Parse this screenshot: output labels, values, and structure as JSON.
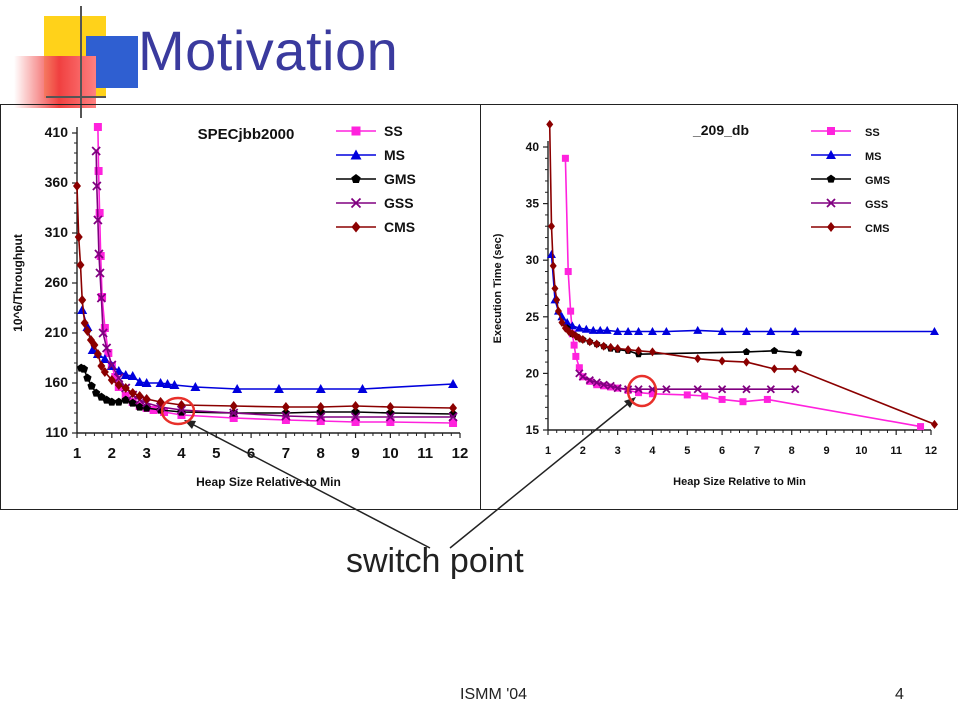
{
  "slide": {
    "title": "Motivation",
    "callout": "switch point",
    "footer_left": "ISMM '04",
    "page_number": "4"
  },
  "colors": {
    "title": "#3a3a9e",
    "SS": "#ff22dd",
    "MS": "#0000dd",
    "GMS": "#000000",
    "GSS": "#800080",
    "CMS": "#8b0000",
    "circle": "#e8302a"
  },
  "chart_data": [
    {
      "type": "line",
      "title": "SPECjbb2000",
      "xlabel": "Heap Size Relative to Min",
      "ylabel": "10^6/Throughput",
      "xlim": [
        1,
        12
      ],
      "ylim": [
        110,
        410
      ],
      "xticks": [
        1,
        2,
        3,
        4,
        5,
        6,
        7,
        8,
        9,
        10,
        11,
        12
      ],
      "yticks": [
        110,
        160,
        210,
        260,
        310,
        360,
        410
      ],
      "legend": "top-right",
      "series": [
        {
          "name": "SS",
          "marker": "square",
          "x": [
            1.6,
            1.62,
            1.65,
            1.68,
            1.72,
            1.8,
            1.9,
            2.0,
            2.1,
            2.2,
            2.4,
            2.6,
            2.8,
            3.0,
            3.2,
            3.5,
            4.0,
            5.5,
            7.0,
            8.0,
            9.0,
            10.0,
            11.8
          ],
          "y": [
            416,
            372,
            330,
            287,
            246,
            215,
            190,
            177,
            166,
            156,
            147,
            141,
            137,
            135,
            133,
            131,
            128,
            125,
            123,
            122,
            121,
            121,
            120
          ]
        },
        {
          "name": "MS",
          "marker": "triangle",
          "x": [
            1.15,
            1.3,
            1.45,
            1.6,
            1.8,
            2.0,
            2.2,
            2.4,
            2.6,
            2.8,
            3.0,
            3.4,
            3.6,
            3.8,
            4.4,
            5.6,
            6.8,
            8.0,
            9.2,
            11.8
          ],
          "y": [
            233,
            216,
            193,
            189,
            184,
            177,
            172,
            168,
            167,
            161,
            160,
            160,
            159,
            158,
            156,
            154,
            154,
            154,
            154,
            159
          ]
        },
        {
          "name": "GMS",
          "marker": "pentagon",
          "x": [
            1.12,
            1.2,
            1.3,
            1.42,
            1.55,
            1.7,
            1.85,
            2.0,
            2.2,
            2.4,
            2.6,
            2.8,
            3.0,
            3.4,
            4.0,
            5.5,
            7.0,
            8.0,
            9.0,
            10.0,
            11.8
          ],
          "y": [
            175,
            174,
            165,
            157,
            150,
            146,
            143,
            141,
            141,
            143,
            140,
            136,
            135,
            133,
            131,
            130,
            130,
            131,
            131,
            130,
            129
          ]
        },
        {
          "name": "GSS",
          "marker": "x",
          "x": [
            1.55,
            1.57,
            1.6,
            1.63,
            1.66,
            1.7,
            1.75,
            1.85,
            2.0,
            2.2,
            2.4,
            2.6,
            2.8,
            3.0,
            3.4,
            4.0,
            5.5,
            7.0,
            8.0,
            9.0,
            10.0,
            11.8
          ],
          "y": [
            392,
            357,
            323,
            289,
            270,
            245,
            210,
            195,
            178,
            165,
            155,
            148,
            143,
            140,
            136,
            133,
            130,
            127,
            126,
            126,
            126,
            126
          ]
        },
        {
          "name": "CMS",
          "marker": "diamond",
          "x": [
            1.0,
            1.05,
            1.1,
            1.15,
            1.22,
            1.3,
            1.4,
            1.5,
            1.6,
            1.7,
            1.8,
            2.0,
            2.2,
            2.4,
            2.6,
            2.8,
            3.0,
            3.4,
            4.0,
            5.5,
            7.0,
            8.0,
            9.0,
            10.0,
            11.8
          ],
          "y": [
            357,
            306,
            278,
            243,
            220,
            212,
            203,
            198,
            189,
            177,
            171,
            163,
            158,
            155,
            150,
            147,
            144,
            141,
            138,
            137,
            136,
            136,
            137,
            136,
            135
          ]
        }
      ]
    },
    {
      "type": "line",
      "title": "_209_db",
      "xlabel": "Heap Size Relative to Min",
      "ylabel": "Execution Time (sec)",
      "xlim": [
        1,
        12
      ],
      "ylim": [
        15,
        40
      ],
      "xticks": [
        1,
        2,
        3,
        4,
        5,
        6,
        7,
        8,
        9,
        10,
        11,
        12
      ],
      "yticks": [
        15,
        20,
        25,
        30,
        35,
        40
      ],
      "legend": "top-right",
      "series": [
        {
          "name": "SS",
          "marker": "square",
          "x": [
            1.5,
            1.58,
            1.65,
            1.7,
            1.75,
            1.8,
            1.9,
            2.0,
            2.2,
            2.4,
            2.6,
            2.8,
            3.0,
            3.3,
            3.6,
            4.0,
            5.0,
            5.5,
            6.0,
            6.6,
            7.3,
            11.7
          ],
          "y": [
            39,
            29,
            25.5,
            23.5,
            22.5,
            21.5,
            20.5,
            19.7,
            19.3,
            19.0,
            18.9,
            18.8,
            18.7,
            18.5,
            18.3,
            18.2,
            18.1,
            18.0,
            17.7,
            17.5,
            17.7,
            15.3
          ]
        },
        {
          "name": "MS",
          "marker": "triangle",
          "x": [
            1.1,
            1.2,
            1.3,
            1.4,
            1.55,
            1.7,
            1.9,
            2.1,
            2.3,
            2.5,
            2.7,
            3.0,
            3.3,
            3.6,
            4.0,
            4.4,
            5.3,
            6.0,
            6.7,
            7.4,
            8.1,
            12.1
          ],
          "y": [
            30.5,
            26.5,
            25.5,
            25,
            24.5,
            24.2,
            24.0,
            23.9,
            23.8,
            23.8,
            23.8,
            23.7,
            23.7,
            23.7,
            23.7,
            23.7,
            23.8,
            23.7,
            23.7,
            23.7,
            23.7,
            23.7
          ]
        },
        {
          "name": "GMS",
          "marker": "pentagon",
          "x": [
            1.55,
            1.7,
            1.85,
            2.0,
            2.2,
            2.4,
            2.6,
            2.8,
            3.0,
            3.3,
            3.6,
            6.7,
            7.5,
            8.2
          ],
          "y": [
            24,
            23.5,
            23.2,
            23.0,
            22.8,
            22.6,
            22.4,
            22.2,
            22.1,
            22.0,
            21.7,
            21.9,
            22.0,
            21.8
          ]
        },
        {
          "name": "GSS",
          "marker": "x",
          "x": [
            1.9,
            2.0,
            2.2,
            2.4,
            2.6,
            2.8,
            3.0,
            3.3,
            3.6,
            4.0,
            4.4,
            5.3,
            6.0,
            6.7,
            7.4,
            8.1
          ],
          "y": [
            20,
            19.7,
            19.4,
            19.2,
            19.0,
            18.9,
            18.7,
            18.6,
            18.6,
            18.6,
            18.6,
            18.6,
            18.6,
            18.6,
            18.6,
            18.6
          ]
        },
        {
          "name": "CMS",
          "marker": "diamond",
          "x": [
            1.05,
            1.1,
            1.15,
            1.2,
            1.25,
            1.3,
            1.4,
            1.5,
            1.6,
            1.7,
            1.8,
            1.9,
            2.0,
            2.2,
            2.4,
            2.6,
            2.8,
            3.0,
            3.3,
            3.6,
            4.0,
            5.3,
            6.0,
            6.7,
            7.5,
            8.1,
            12.1
          ],
          "y": [
            42,
            33,
            29.5,
            27.5,
            26.5,
            25.5,
            24.5,
            24.0,
            23.7,
            23.5,
            23.3,
            23.1,
            23.0,
            22.8,
            22.6,
            22.4,
            22.3,
            22.2,
            22.1,
            22.0,
            21.9,
            21.3,
            21.1,
            21.0,
            20.4,
            20.4,
            15.5
          ]
        }
      ]
    }
  ]
}
